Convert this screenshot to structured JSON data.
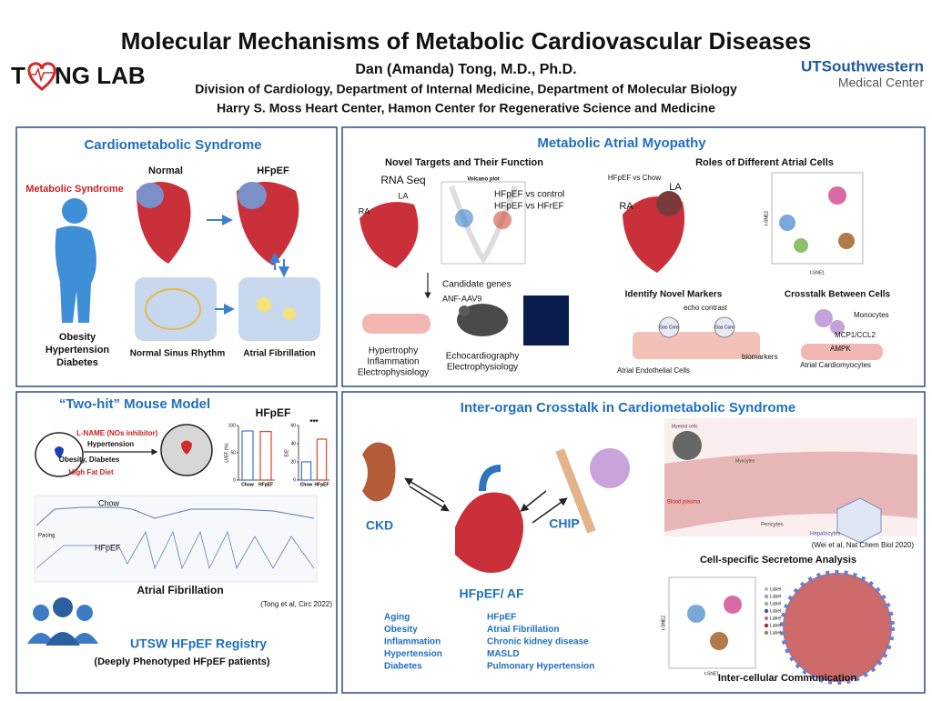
{
  "header": {
    "title": "Molecular Mechanisms of Metabolic Cardiovascular Diseases",
    "lab_start": "T",
    "lab_end": "NG LAB",
    "author": "Dan (Amanda) Tong, M.D., Ph.D.",
    "affiliation_1": "Division of Cardiology, Department of Internal Medicine, Department of Molecular Biology",
    "affiliation_2": "Harry S. Moss Heart Center,  Hamon Center for Regenerative Science and Medicine",
    "institution": "UTSouthwestern",
    "institution_sub": "Medical Center"
  },
  "cardiometabolic": {
    "title": "Cardiometabolic Syndrome",
    "metabolic_syndrome": "Metabolic Syndrome",
    "normal": "Normal",
    "hfpef": "HFpEF",
    "conditions": [
      "Obesity",
      "Hypertension",
      "Diabetes"
    ],
    "normal_rhythm": "Normal Sinus Rhythm",
    "atrial_fibrillation": "Atrial Fibrillation"
  },
  "atrial_myopathy": {
    "title": "Metabolic Atrial Myopathy",
    "targets": {
      "title": "Novel Targets and Their Function",
      "rna_seq": "RNA Seq",
      "volcano": "Volcano plot",
      "la": "LA",
      "ra": "RA",
      "comparisons": [
        "HFpEF vs control",
        "HFpEF vs HFrEF"
      ],
      "candidate_genes": "Candidate genes",
      "aav": "ANF-AAV9",
      "functions_1": [
        "Hypertrophy",
        "Inflammation",
        "Electrophysiology"
      ],
      "functions_2": [
        "Echocardiography",
        "Electrophysiology"
      ]
    },
    "cells": {
      "title": "Roles of Different Atrial Cells",
      "comparison": "HFpEF vs Chow",
      "la": "LA",
      "ra": "RA",
      "tsne_x": "t-SNE1",
      "tsne_y": "t-SNE2"
    },
    "markers": {
      "title": "Identify Novel Markers",
      "echo": "echo contrast",
      "gas_core": [
        "Gas Core",
        "Gas Core"
      ],
      "biomarkers": "biomarkers",
      "endothelial": "Atrial Endothelial Cells"
    },
    "crosstalk": {
      "title": "Crosstalk Between Cells",
      "monocytes": "Monocytes",
      "mcp1": "MCP1/CCL2",
      "ampk": "AMPK",
      "cardiomyocytes": "Atrial Cardiomyocytes"
    }
  },
  "mouse_model": {
    "title": "“Two-hit” Mouse Model",
    "hfpef": "HFpEF",
    "lname": "L-NAME (NOs inhibitor)",
    "hypertension": "Hypertension",
    "obesity": "Obesity, Diabetes",
    "hfd": "High Fat Diet",
    "lvef_chart": {
      "ylabel": "LVEF (%)",
      "categories": [
        "Chow",
        "HFpEF"
      ],
      "values": [
        90,
        89
      ],
      "ylim": [
        0,
        100
      ],
      "yticks": [
        0,
        50,
        100
      ],
      "colors": [
        "#3a78c8",
        "#d9472b"
      ]
    },
    "ee_chart": {
      "ylabel": "E/E'",
      "categories": [
        "Chow",
        "HFpEF"
      ],
      "values": [
        20,
        45
      ],
      "ylim": [
        0,
        60
      ],
      "yticks": [
        0,
        20,
        40,
        60
      ],
      "significance": "***",
      "colors": [
        "#3a78c8",
        "#d9472b"
      ]
    },
    "chow": "Chow",
    "pacing": "Pacing",
    "hfpef_trace": "HFpEF",
    "af": "Atrial Fibrillation",
    "citation": "(Tong et al, Circ 2022)",
    "registry": "UTSW HFpEF Registry",
    "registry_sub": "(Deeply Phenotyped HFpEF patients)"
  },
  "inter_organ": {
    "title": "Inter-organ Crosstalk in Cardiometabolic Syndrome",
    "ckd": "CKD",
    "chip": "CHIP",
    "hfpef_af": "HFpEF/ AF",
    "risk_factors": [
      "Aging",
      "Obesity",
      "Inflammation",
      "Hypertension",
      "Diabetes"
    ],
    "outcomes": [
      "HFpEF",
      "Atrial Fibrillation",
      "Chronic kidney disease",
      "MASLD",
      "Pulmonary Hypertension"
    ],
    "myeloid": "Myeloid cells",
    "myocytes": "Myocytes",
    "plasma": "Blood plasma",
    "pericytes": "Pericytes",
    "hepatocytes": "Hepatocytes",
    "citation": "(Wei et al, Nat Chem Biol 2020)",
    "secretome": "Cell-specific Secretome Analysis",
    "tsne_x": "t-SNE1",
    "tsne_y": "t-SNE2",
    "legend": [
      "Label",
      "Label",
      "Label",
      "Label",
      "Label",
      "Label",
      "Label"
    ],
    "communication": "Inter-cellular Communication"
  }
}
